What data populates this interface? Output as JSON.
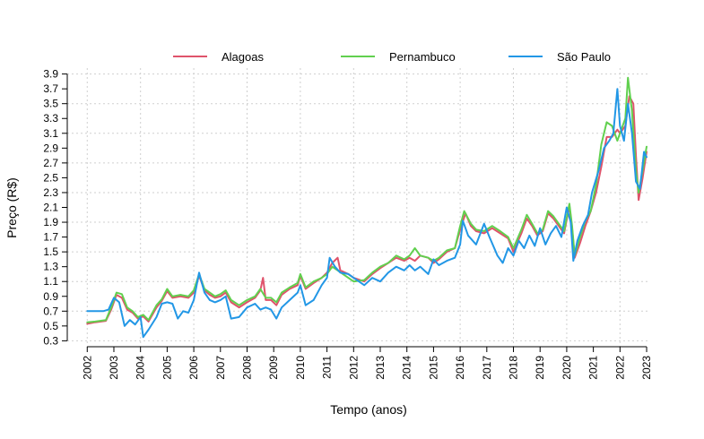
{
  "chart_data": {
    "type": "line",
    "title": "",
    "xlabel": "Tempo (anos)",
    "ylabel": "Preço (R$)",
    "xlim": [
      2001.25,
      2023.1
    ],
    "ylim": [
      0.22,
      3.98
    ],
    "x_ticks": [
      2002,
      2003,
      2004,
      2005,
      2006,
      2007,
      2008,
      2009,
      2010,
      2011,
      2012,
      2013,
      2014,
      2015,
      2016,
      2017,
      2018,
      2019,
      2020,
      2021,
      2022,
      2023
    ],
    "x_tick_labels": [
      "2002",
      "2003",
      "2004",
      "2005",
      "2006",
      "2007",
      "2008",
      "2009",
      "2010",
      "2011",
      "2012",
      "2013",
      "2014",
      "2015",
      "2016",
      "2017",
      "2018",
      "2019",
      "2020",
      "2021",
      "2022",
      "2023"
    ],
    "y_ticks": [
      0.3,
      0.5,
      0.7,
      0.9,
      1.1,
      1.3,
      1.5,
      1.7,
      1.9,
      2.1,
      2.3,
      2.5,
      2.7,
      2.9,
      3.1,
      3.3,
      3.5,
      3.7,
      3.9
    ],
    "y_tick_labels": [
      "0.3",
      "0.5",
      "0.7",
      "0.9",
      "1.1",
      "1.3",
      "1.5",
      "1.7",
      "1.9",
      "2.1",
      "2.3",
      "2.5",
      "2.7",
      "2.9",
      "3.1",
      "3.3",
      "3.5",
      "3.7",
      "3.9"
    ],
    "grid": true,
    "legend_position": "top",
    "series": [
      {
        "name": "Alagoas",
        "color": "#DF536B",
        "points": [
          [
            2002.0,
            0.53
          ],
          [
            2002.3,
            0.55
          ],
          [
            2002.7,
            0.57
          ],
          [
            2002.9,
            0.72
          ],
          [
            2003.1,
            0.92
          ],
          [
            2003.3,
            0.88
          ],
          [
            2003.5,
            0.72
          ],
          [
            2003.7,
            0.68
          ],
          [
            2003.9,
            0.6
          ],
          [
            2004.1,
            0.63
          ],
          [
            2004.3,
            0.56
          ],
          [
            2004.6,
            0.75
          ],
          [
            2004.8,
            0.84
          ],
          [
            2005.0,
            0.97
          ],
          [
            2005.2,
            0.88
          ],
          [
            2005.5,
            0.9
          ],
          [
            2005.8,
            0.88
          ],
          [
            2006.0,
            0.95
          ],
          [
            2006.2,
            1.18
          ],
          [
            2006.4,
            0.98
          ],
          [
            2006.6,
            0.92
          ],
          [
            2006.8,
            0.88
          ],
          [
            2007.0,
            0.9
          ],
          [
            2007.2,
            0.95
          ],
          [
            2007.4,
            0.82
          ],
          [
            2007.7,
            0.75
          ],
          [
            2008.0,
            0.82
          ],
          [
            2008.3,
            0.88
          ],
          [
            2008.5,
            0.98
          ],
          [
            2008.6,
            1.15
          ],
          [
            2008.7,
            0.85
          ],
          [
            2008.9,
            0.85
          ],
          [
            2009.1,
            0.78
          ],
          [
            2009.3,
            0.92
          ],
          [
            2009.6,
            1.0
          ],
          [
            2009.9,
            1.05
          ],
          [
            2010.0,
            1.18
          ],
          [
            2010.2,
            1.0
          ],
          [
            2010.5,
            1.08
          ],
          [
            2010.8,
            1.15
          ],
          [
            2011.0,
            1.22
          ],
          [
            2011.2,
            1.35
          ],
          [
            2011.4,
            1.42
          ],
          [
            2011.5,
            1.25
          ],
          [
            2011.8,
            1.2
          ],
          [
            2012.0,
            1.15
          ],
          [
            2012.4,
            1.1
          ],
          [
            2012.7,
            1.2
          ],
          [
            2013.0,
            1.28
          ],
          [
            2013.3,
            1.35
          ],
          [
            2013.6,
            1.42
          ],
          [
            2013.9,
            1.38
          ],
          [
            2014.1,
            1.42
          ],
          [
            2014.3,
            1.38
          ],
          [
            2014.5,
            1.45
          ],
          [
            2014.8,
            1.42
          ],
          [
            2015.0,
            1.35
          ],
          [
            2015.2,
            1.4
          ],
          [
            2015.5,
            1.5
          ],
          [
            2015.8,
            1.55
          ],
          [
            2016.0,
            1.8
          ],
          [
            2016.2,
            2.02
          ],
          [
            2016.4,
            1.85
          ],
          [
            2016.6,
            1.78
          ],
          [
            2016.9,
            1.75
          ],
          [
            2017.2,
            1.82
          ],
          [
            2017.5,
            1.75
          ],
          [
            2017.8,
            1.68
          ],
          [
            2018.0,
            1.5
          ],
          [
            2018.3,
            1.75
          ],
          [
            2018.5,
            1.95
          ],
          [
            2018.7,
            1.85
          ],
          [
            2018.9,
            1.72
          ],
          [
            2019.1,
            1.78
          ],
          [
            2019.3,
            2.02
          ],
          [
            2019.5,
            1.95
          ],
          [
            2019.7,
            1.85
          ],
          [
            2019.9,
            1.75
          ],
          [
            2020.1,
            2.12
          ],
          [
            2020.2,
            1.82
          ],
          [
            2020.3,
            1.42
          ],
          [
            2020.5,
            1.62
          ],
          [
            2020.7,
            1.85
          ],
          [
            2020.9,
            2.05
          ],
          [
            2021.1,
            2.3
          ],
          [
            2021.3,
            2.65
          ],
          [
            2021.5,
            3.05
          ],
          [
            2021.7,
            3.05
          ],
          [
            2021.9,
            3.15
          ],
          [
            2022.0,
            3.1
          ],
          [
            2022.2,
            3.2
          ],
          [
            2022.35,
            3.6
          ],
          [
            2022.5,
            3.5
          ],
          [
            2022.6,
            2.8
          ],
          [
            2022.7,
            2.2
          ],
          [
            2022.85,
            2.5
          ],
          [
            2023.0,
            2.85
          ]
        ]
      },
      {
        "name": "Pernambuco",
        "color": "#61D04F",
        "points": [
          [
            2002.0,
            0.55
          ],
          [
            2002.3,
            0.56
          ],
          [
            2002.7,
            0.58
          ],
          [
            2002.9,
            0.75
          ],
          [
            2003.1,
            0.95
          ],
          [
            2003.3,
            0.93
          ],
          [
            2003.5,
            0.75
          ],
          [
            2003.7,
            0.7
          ],
          [
            2003.9,
            0.62
          ],
          [
            2004.1,
            0.65
          ],
          [
            2004.3,
            0.58
          ],
          [
            2004.6,
            0.78
          ],
          [
            2004.8,
            0.86
          ],
          [
            2005.0,
            1.0
          ],
          [
            2005.2,
            0.9
          ],
          [
            2005.5,
            0.92
          ],
          [
            2005.8,
            0.9
          ],
          [
            2006.0,
            0.98
          ],
          [
            2006.2,
            1.2
          ],
          [
            2006.4,
            1.0
          ],
          [
            2006.6,
            0.95
          ],
          [
            2006.8,
            0.9
          ],
          [
            2007.0,
            0.93
          ],
          [
            2007.2,
            0.98
          ],
          [
            2007.4,
            0.85
          ],
          [
            2007.7,
            0.78
          ],
          [
            2008.0,
            0.85
          ],
          [
            2008.3,
            0.9
          ],
          [
            2008.5,
            1.0
          ],
          [
            2008.7,
            0.88
          ],
          [
            2008.9,
            0.88
          ],
          [
            2009.1,
            0.82
          ],
          [
            2009.3,
            0.95
          ],
          [
            2009.6,
            1.02
          ],
          [
            2009.9,
            1.08
          ],
          [
            2010.0,
            1.2
          ],
          [
            2010.2,
            1.02
          ],
          [
            2010.5,
            1.1
          ],
          [
            2010.8,
            1.15
          ],
          [
            2011.0,
            1.2
          ],
          [
            2011.2,
            1.3
          ],
          [
            2011.4,
            1.25
          ],
          [
            2011.6,
            1.2
          ],
          [
            2011.8,
            1.15
          ],
          [
            2012.0,
            1.1
          ],
          [
            2012.4,
            1.12
          ],
          [
            2012.7,
            1.22
          ],
          [
            2013.0,
            1.3
          ],
          [
            2013.3,
            1.35
          ],
          [
            2013.6,
            1.45
          ],
          [
            2013.9,
            1.4
          ],
          [
            2014.1,
            1.45
          ],
          [
            2014.3,
            1.55
          ],
          [
            2014.5,
            1.45
          ],
          [
            2014.8,
            1.42
          ],
          [
            2015.0,
            1.38
          ],
          [
            2015.2,
            1.42
          ],
          [
            2015.5,
            1.52
          ],
          [
            2015.8,
            1.55
          ],
          [
            2016.0,
            1.85
          ],
          [
            2016.15,
            2.05
          ],
          [
            2016.4,
            1.88
          ],
          [
            2016.6,
            1.8
          ],
          [
            2016.9,
            1.78
          ],
          [
            2017.2,
            1.85
          ],
          [
            2017.5,
            1.78
          ],
          [
            2017.8,
            1.7
          ],
          [
            2018.0,
            1.55
          ],
          [
            2018.3,
            1.8
          ],
          [
            2018.5,
            2.0
          ],
          [
            2018.7,
            1.88
          ],
          [
            2018.9,
            1.75
          ],
          [
            2019.1,
            1.8
          ],
          [
            2019.3,
            2.05
          ],
          [
            2019.5,
            1.98
          ],
          [
            2019.7,
            1.88
          ],
          [
            2019.9,
            1.78
          ],
          [
            2020.1,
            2.15
          ],
          [
            2020.2,
            1.85
          ],
          [
            2020.3,
            1.45
          ],
          [
            2020.5,
            1.7
          ],
          [
            2020.7,
            1.92
          ],
          [
            2020.9,
            2.05
          ],
          [
            2021.1,
            2.4
          ],
          [
            2021.3,
            2.95
          ],
          [
            2021.5,
            3.25
          ],
          [
            2021.7,
            3.2
          ],
          [
            2021.9,
            3.0
          ],
          [
            2022.0,
            3.1
          ],
          [
            2022.2,
            3.3
          ],
          [
            2022.3,
            3.85
          ],
          [
            2022.45,
            3.4
          ],
          [
            2022.6,
            2.6
          ],
          [
            2022.7,
            2.3
          ],
          [
            2022.85,
            2.6
          ],
          [
            2023.0,
            2.92
          ]
        ]
      },
      {
        "name": "São Paulo",
        "color": "#2297E6",
        "points": [
          [
            2002.0,
            0.7
          ],
          [
            2002.3,
            0.7
          ],
          [
            2002.6,
            0.7
          ],
          [
            2002.8,
            0.72
          ],
          [
            2003.0,
            0.88
          ],
          [
            2003.2,
            0.82
          ],
          [
            2003.4,
            0.5
          ],
          [
            2003.6,
            0.58
          ],
          [
            2003.8,
            0.52
          ],
          [
            2004.0,
            0.62
          ],
          [
            2004.1,
            0.35
          ],
          [
            2004.3,
            0.45
          ],
          [
            2004.6,
            0.62
          ],
          [
            2004.8,
            0.8
          ],
          [
            2005.0,
            0.82
          ],
          [
            2005.2,
            0.8
          ],
          [
            2005.4,
            0.6
          ],
          [
            2005.6,
            0.7
          ],
          [
            2005.8,
            0.68
          ],
          [
            2006.0,
            0.85
          ],
          [
            2006.2,
            1.22
          ],
          [
            2006.4,
            0.95
          ],
          [
            2006.6,
            0.85
          ],
          [
            2006.8,
            0.82
          ],
          [
            2007.0,
            0.85
          ],
          [
            2007.2,
            0.9
          ],
          [
            2007.4,
            0.6
          ],
          [
            2007.7,
            0.62
          ],
          [
            2008.0,
            0.75
          ],
          [
            2008.3,
            0.8
          ],
          [
            2008.5,
            0.72
          ],
          [
            2008.7,
            0.75
          ],
          [
            2008.9,
            0.72
          ],
          [
            2009.1,
            0.6
          ],
          [
            2009.3,
            0.75
          ],
          [
            2009.6,
            0.85
          ],
          [
            2009.9,
            0.95
          ],
          [
            2010.0,
            1.05
          ],
          [
            2010.2,
            0.78
          ],
          [
            2010.5,
            0.85
          ],
          [
            2010.8,
            1.05
          ],
          [
            2011.0,
            1.15
          ],
          [
            2011.1,
            1.42
          ],
          [
            2011.3,
            1.3
          ],
          [
            2011.5,
            1.22
          ],
          [
            2011.8,
            1.2
          ],
          [
            2012.0,
            1.15
          ],
          [
            2012.4,
            1.05
          ],
          [
            2012.7,
            1.15
          ],
          [
            2013.0,
            1.1
          ],
          [
            2013.3,
            1.22
          ],
          [
            2013.6,
            1.3
          ],
          [
            2013.9,
            1.25
          ],
          [
            2014.1,
            1.32
          ],
          [
            2014.3,
            1.25
          ],
          [
            2014.5,
            1.3
          ],
          [
            2014.8,
            1.2
          ],
          [
            2015.0,
            1.4
          ],
          [
            2015.2,
            1.32
          ],
          [
            2015.5,
            1.38
          ],
          [
            2015.8,
            1.42
          ],
          [
            2016.0,
            1.6
          ],
          [
            2016.1,
            1.92
          ],
          [
            2016.3,
            1.72
          ],
          [
            2016.6,
            1.6
          ],
          [
            2016.9,
            1.88
          ],
          [
            2017.1,
            1.7
          ],
          [
            2017.4,
            1.45
          ],
          [
            2017.6,
            1.35
          ],
          [
            2017.8,
            1.55
          ],
          [
            2018.0,
            1.45
          ],
          [
            2018.2,
            1.65
          ],
          [
            2018.4,
            1.55
          ],
          [
            2018.6,
            1.72
          ],
          [
            2018.8,
            1.58
          ],
          [
            2019.0,
            1.82
          ],
          [
            2019.2,
            1.6
          ],
          [
            2019.4,
            1.75
          ],
          [
            2019.6,
            1.85
          ],
          [
            2019.8,
            1.7
          ],
          [
            2020.0,
            2.1
          ],
          [
            2020.15,
            1.9
          ],
          [
            2020.25,
            1.38
          ],
          [
            2020.4,
            1.65
          ],
          [
            2020.6,
            1.85
          ],
          [
            2020.8,
            2.0
          ],
          [
            2020.95,
            2.3
          ],
          [
            2021.2,
            2.6
          ],
          [
            2021.4,
            2.9
          ],
          [
            2021.6,
            3.0
          ],
          [
            2021.75,
            3.1
          ],
          [
            2021.9,
            3.7
          ],
          [
            2022.0,
            3.2
          ],
          [
            2022.15,
            3.0
          ],
          [
            2022.3,
            3.5
          ],
          [
            2022.45,
            3.1
          ],
          [
            2022.6,
            2.45
          ],
          [
            2022.75,
            2.35
          ],
          [
            2022.9,
            2.85
          ],
          [
            2023.0,
            2.78
          ]
        ]
      }
    ]
  }
}
